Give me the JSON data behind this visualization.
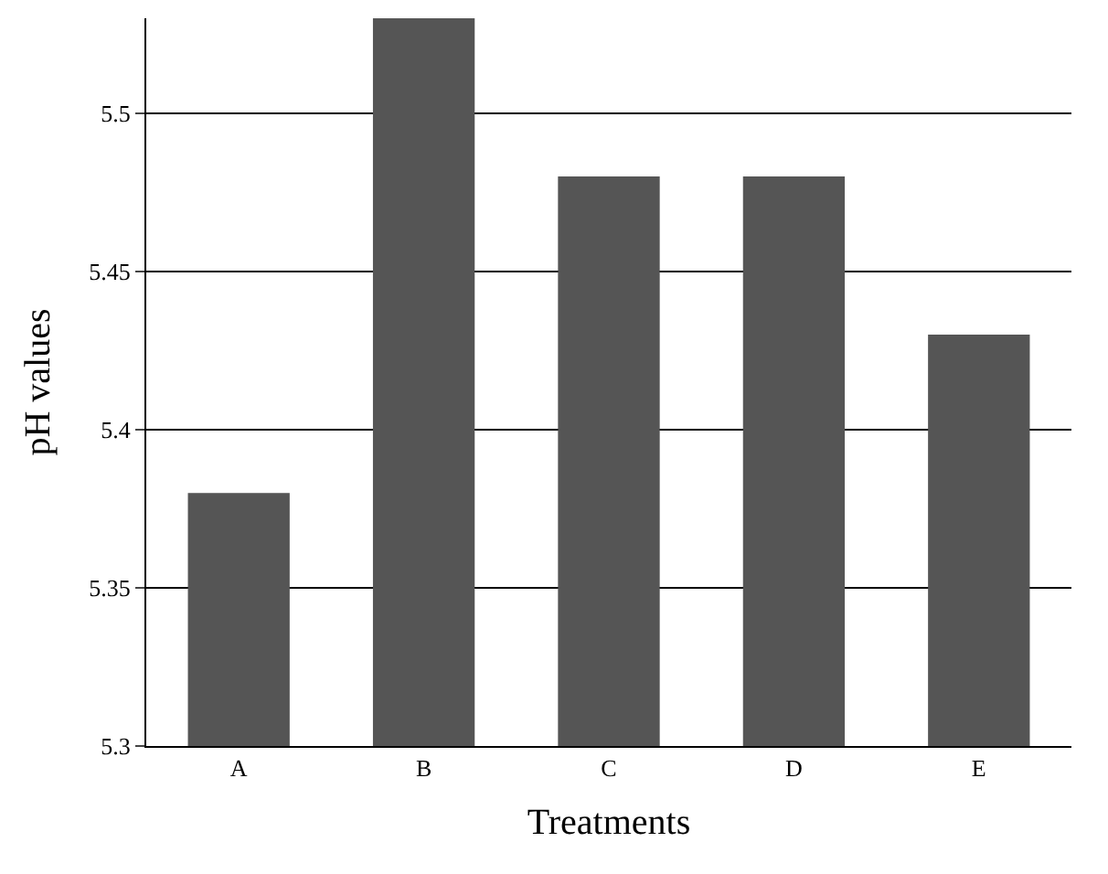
{
  "chart_data": {
    "type": "bar",
    "xlabel": "Treatments",
    "ylabel": "pH values",
    "categories": [
      "A",
      "B",
      "C",
      "D",
      "E"
    ],
    "values": [
      5.38,
      5.53,
      5.48,
      5.48,
      5.43
    ],
    "color": "#555555",
    "ylim": [
      5.3,
      5.53
    ],
    "yticks": [
      5.3,
      5.35,
      5.4,
      5.45,
      5.5
    ],
    "grid": "y",
    "legend": false
  }
}
